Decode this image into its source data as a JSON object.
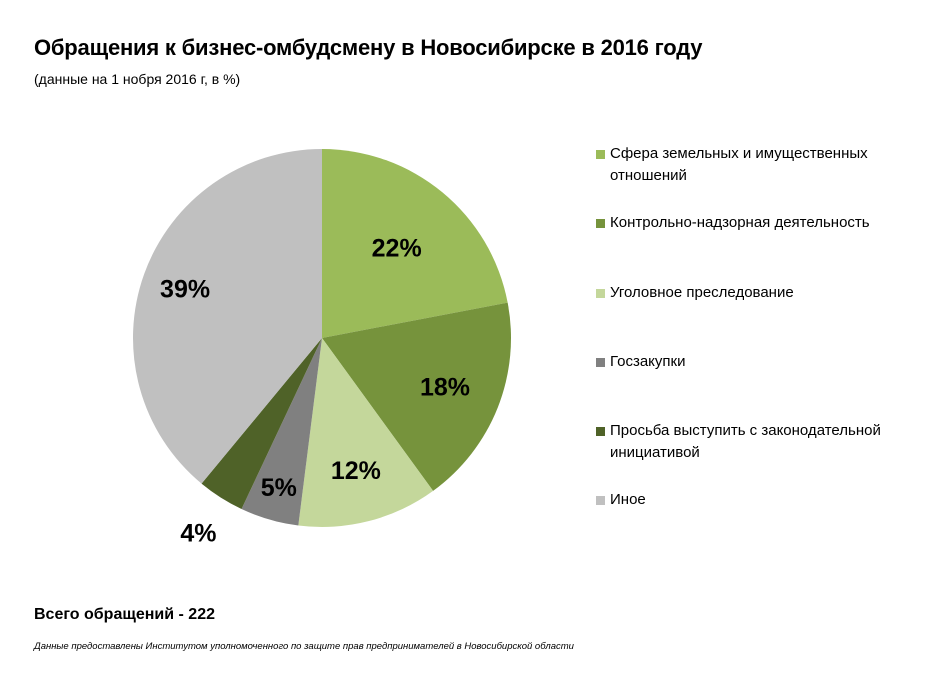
{
  "title": "Обращения к бизнес-омбудсмену в Новосибирске в 2016 году",
  "subtitle": "(данные на 1 нобря 2016 г, в %)",
  "total": "Всего обращений - 222",
  "source": "Данные предоставлены Институтом уполномоченного по защите прав предпринимателей в Новосибирской области",
  "chart_data": {
    "type": "pie",
    "unit": "%",
    "legend_position": "right",
    "slices": [
      {
        "label": "Сфера земельных и имущественных отношений",
        "value": 22,
        "value_label": "22%",
        "color": "#9bbb59"
      },
      {
        "label": "Контрольно-надзорная деятельность",
        "value": 18,
        "value_label": "18%",
        "color": "#76933c"
      },
      {
        "label": "Уголовное преследование",
        "value": 12,
        "value_label": "12%",
        "color": "#c4d79b"
      },
      {
        "label": "Госзакупки",
        "value": 5,
        "value_label": "5%",
        "color": "#808080"
      },
      {
        "label": "Просьба выступить с законодательной инициативой",
        "value": 4,
        "value_label": "4%",
        "color": "#4f6228"
      },
      {
        "label": "Иное",
        "value": 39,
        "value_label": "39%",
        "color": "#c0c0c0"
      }
    ]
  }
}
